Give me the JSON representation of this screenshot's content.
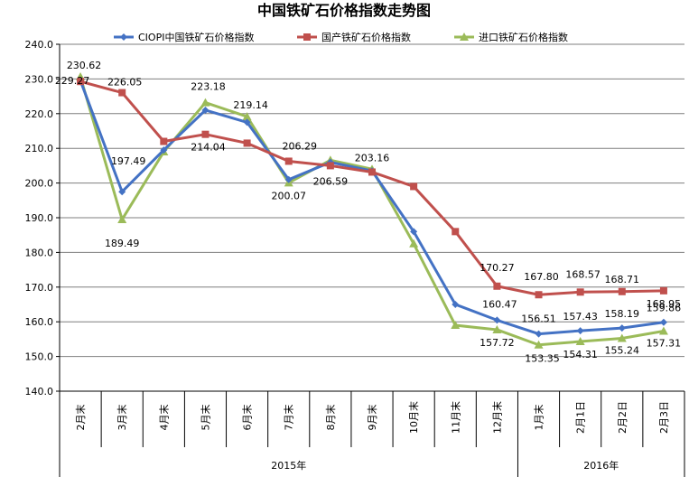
{
  "chart_data": {
    "type": "line",
    "title": "中国铁矿石价格指数走势图",
    "categories": [
      "2月末",
      "3月末",
      "4月末",
      "5月末",
      "6月末",
      "7月末",
      "8月末",
      "9月末",
      "10月末",
      "11月末",
      "12月末",
      "1月末",
      "2月1日",
      "2月2日",
      "2月3日"
    ],
    "year_groups": [
      {
        "label": "2015年",
        "start": 0,
        "end": 10
      },
      {
        "label": "2016年",
        "start": 11,
        "end": 14
      }
    ],
    "ylim": [
      140,
      240
    ],
    "yticks": [
      "140.0",
      "150.0",
      "160.0",
      "170.0",
      "180.0",
      "190.0",
      "200.0",
      "210.0",
      "220.0",
      "230.0",
      "240.0"
    ],
    "grid": true,
    "legend_position": "top",
    "series": [
      {
        "name": "CIOPI中国铁矿石价格指数",
        "color": "#4472C4",
        "marker": "diamond",
        "values": [
          229.5,
          197.49,
          209.5,
          221.0,
          217.5,
          201.0,
          206.0,
          203.5,
          186.0,
          165.0,
          160.47,
          156.51,
          157.43,
          158.19,
          159.86
        ],
        "labels": [
          null,
          "197.49",
          null,
          null,
          null,
          null,
          null,
          null,
          null,
          null,
          "160.47",
          "156.51",
          "157.43",
          "158.19",
          "159.86"
        ]
      },
      {
        "name": "国产铁矿石价格指数",
        "color": "#C0504D",
        "marker": "square",
        "values": [
          229.27,
          226.05,
          212.0,
          214.04,
          211.5,
          206.29,
          205.0,
          203.16,
          199.0,
          186.0,
          170.27,
          167.8,
          168.57,
          168.71,
          168.95
        ],
        "labels": [
          "229.27",
          "226.05",
          null,
          "214.04",
          null,
          "206.29",
          null,
          "203.16",
          null,
          null,
          "170.27",
          "167.80",
          "168.57",
          "168.71",
          "168.95"
        ]
      },
      {
        "name": "进口铁矿石价格指数",
        "color": "#9BBB59",
        "marker": "triangle",
        "values": [
          230.62,
          189.49,
          209.0,
          223.18,
          219.14,
          200.07,
          206.59,
          204.0,
          182.5,
          159.0,
          157.72,
          153.35,
          154.31,
          155.24,
          157.31
        ],
        "labels": [
          "230.62",
          "189.49",
          null,
          "223.18",
          "219.14",
          "200.07",
          "206.59",
          null,
          null,
          null,
          "157.72",
          "153.35",
          "154.31",
          "155.24",
          "157.31"
        ]
      }
    ]
  }
}
